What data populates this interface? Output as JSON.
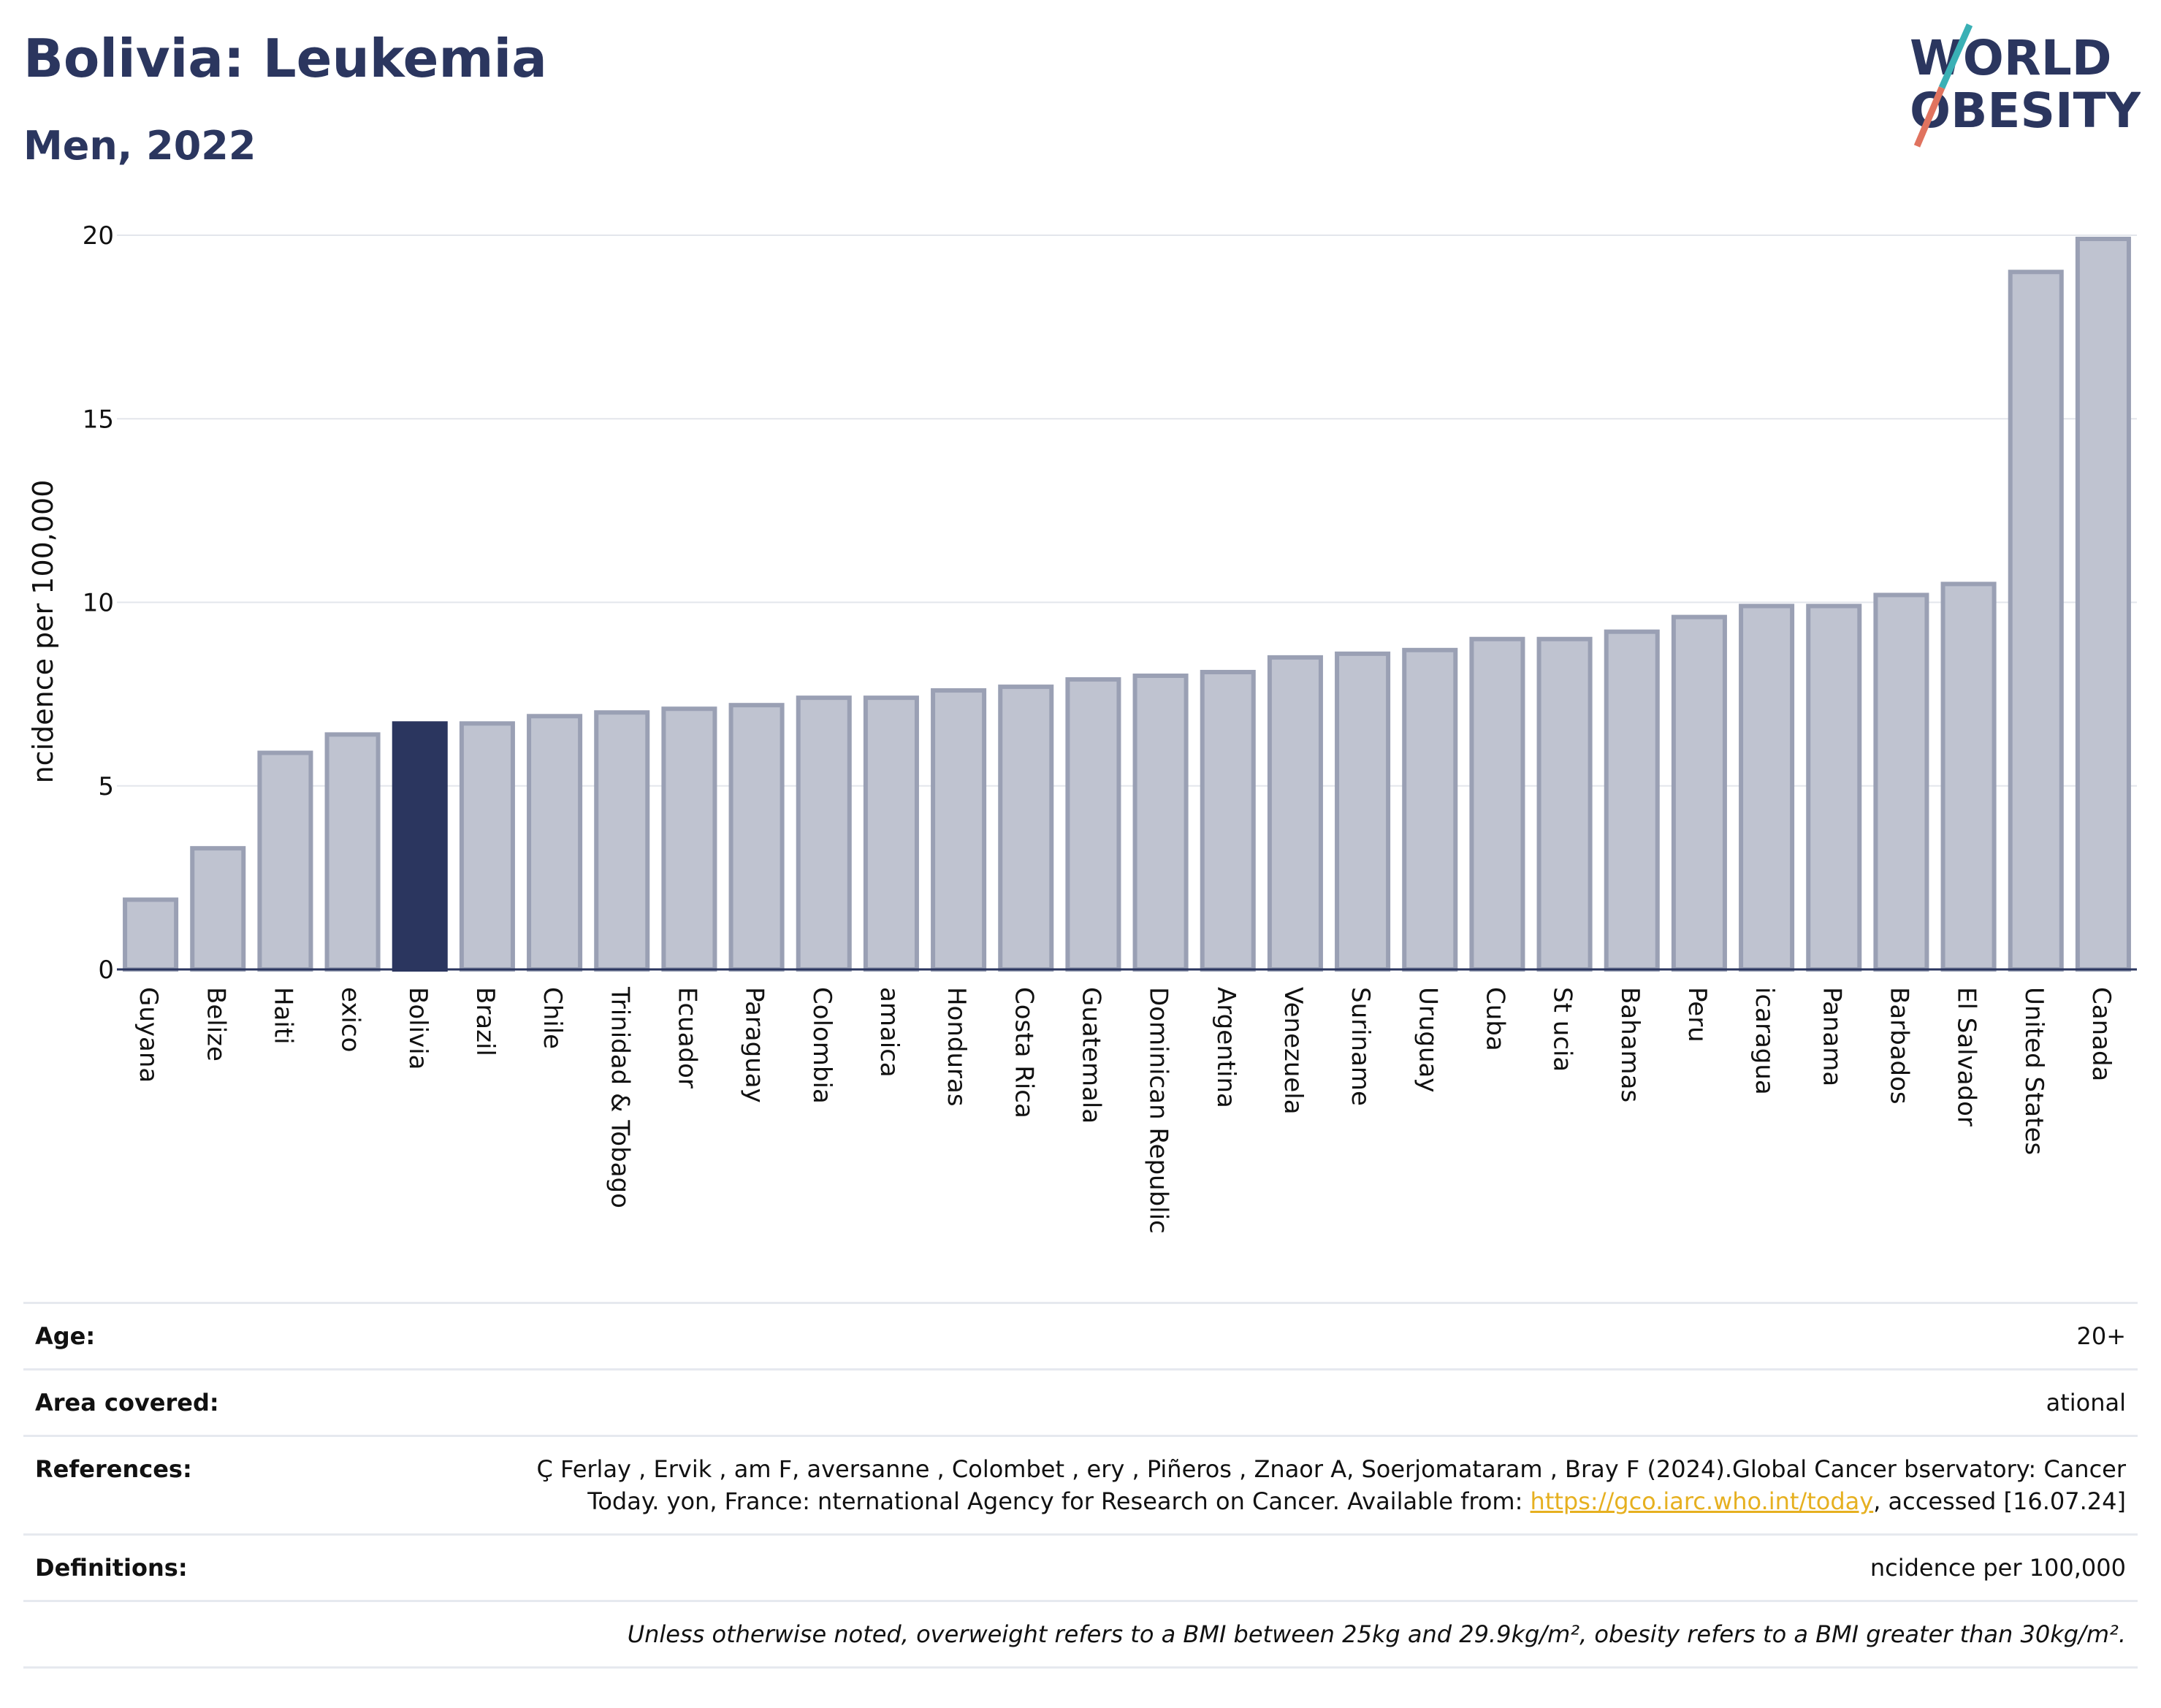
{
  "header": {
    "title": "Bolivia: Leukemia",
    "subtitle": "Men, 2022"
  },
  "logo": {
    "line1": "WORLD",
    "line2": "OBESITY"
  },
  "colors": {
    "highlight": "#2b365f",
    "bar": "#bfc3d0",
    "bar_stroke": "#9aa0b4",
    "logo_teal": "#3ab0b5",
    "logo_coral": "#e0735f"
  },
  "chart_data": {
    "type": "bar",
    "ylabel": "ncidence per 100,000",
    "ylim": [
      0,
      20
    ],
    "yticks": [
      0,
      5,
      10,
      15,
      20
    ],
    "grid": true,
    "highlight": "Bolivia",
    "categories": [
      "Guyana",
      "Belize",
      "Haiti",
      "exico",
      "Bolivia",
      "Brazil",
      "Chile",
      "Trinidad & Tobago",
      "Ecuador",
      "Paraguay",
      "Colombia",
      "amaica",
      "Honduras",
      "Costa Rica",
      "Guatemala",
      "Dominican Republic",
      "Argentina",
      "Venezuela",
      "Suriname",
      "Uruguay",
      "Cuba",
      "St ucia",
      "Bahamas",
      "Peru",
      "icaragua",
      "Panama",
      "Barbados",
      "El Salvador",
      "United States",
      "Canada"
    ],
    "values": [
      1.9,
      3.3,
      5.9,
      6.4,
      6.7,
      6.7,
      6.9,
      7.0,
      7.1,
      7.2,
      7.4,
      7.4,
      7.6,
      7.7,
      7.9,
      8.0,
      8.1,
      8.5,
      8.6,
      8.7,
      9.0,
      9.0,
      9.2,
      9.6,
      9.9,
      9.9,
      10.2,
      10.5,
      19.0,
      19.9
    ]
  },
  "info": {
    "age_label": "Age:",
    "age_value": "20+",
    "area_label": "Area covered:",
    "area_value": "ational",
    "ref_label": "References:",
    "ref_text": "Ç Ferlay , Ervik , am F, aversanne , Colombet , ery , Piñeros , Znaor A, Soerjomataram , Bray F (2024).Global Cancer bservatory: Cancer Today. yon, France: nternational Agency for Research on Cancer. Available from: ",
    "ref_link": "https://gco.iarc.who.int/today",
    "ref_tail": ", accessed [16.07.24]",
    "def_label": "Definitions:",
    "def_value": "ncidence per 100,000",
    "note": "Unless otherwise noted, overweight refers to a BMI between 25kg and 29.9kg/m², obesity refers to a BMI greater than 30kg/m²."
  }
}
